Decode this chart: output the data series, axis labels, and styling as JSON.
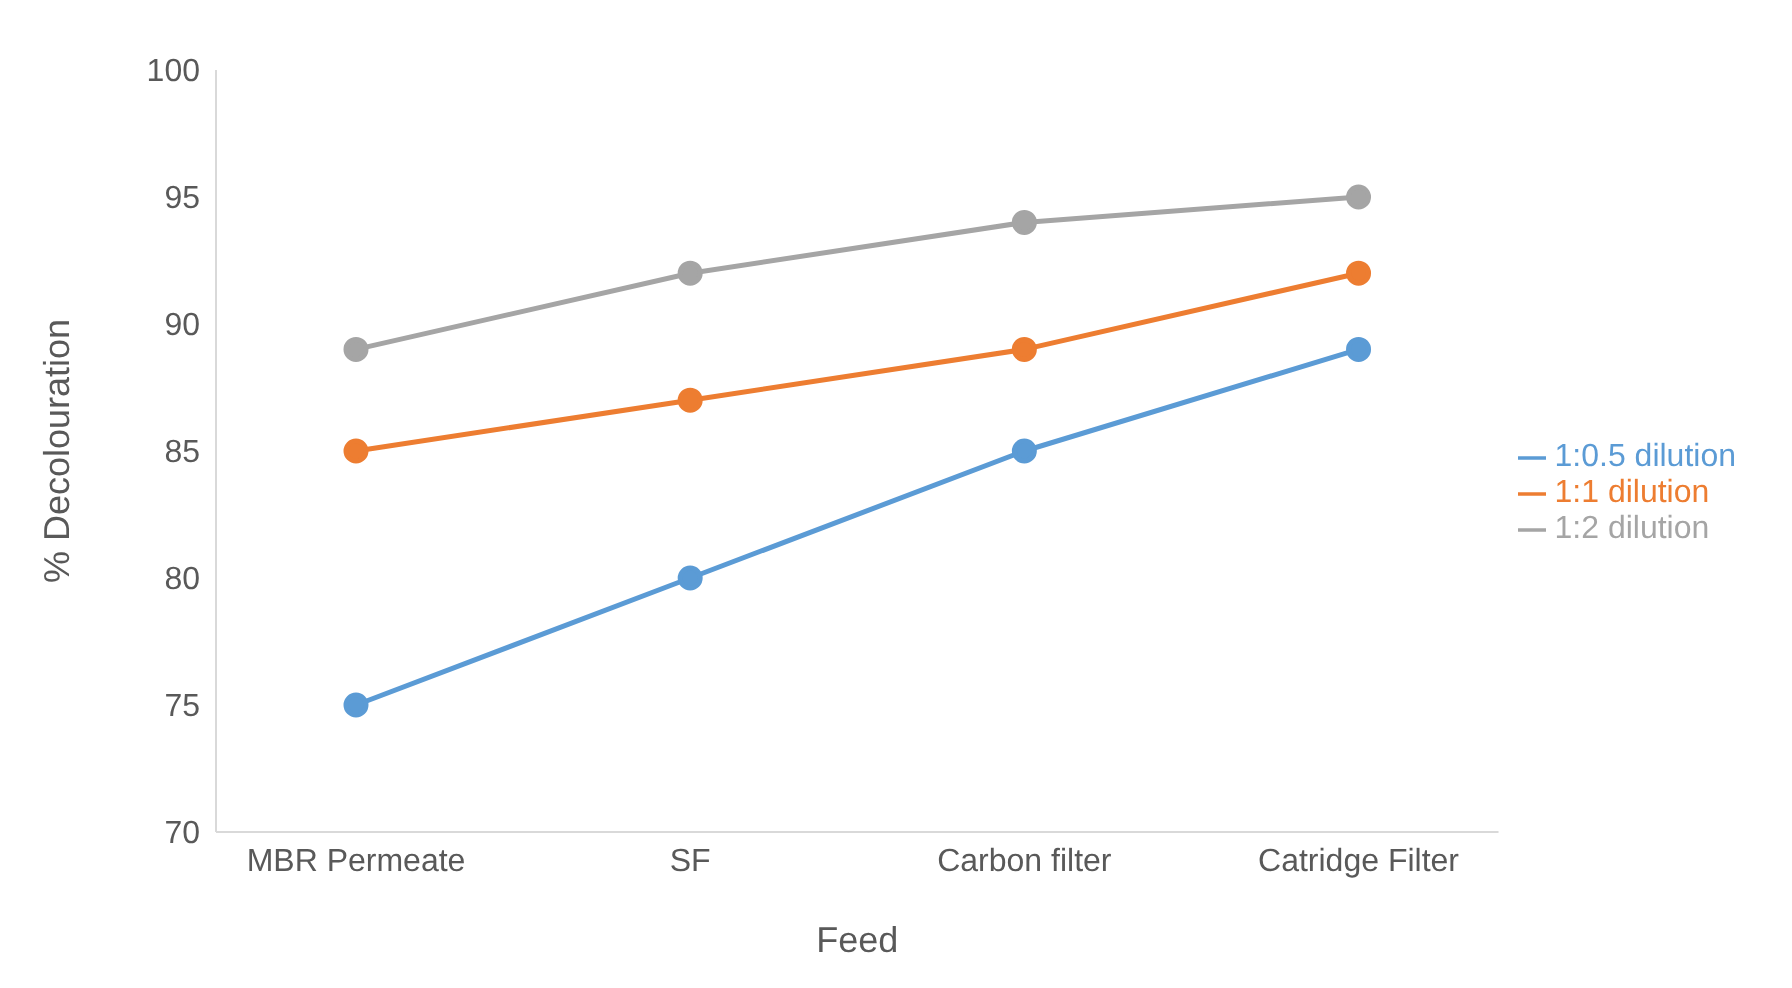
{
  "chart_data": {
    "type": "line",
    "xlabel": "Feed",
    "ylabel": "% Decolouration",
    "categories": [
      "MBR Permeate",
      "SF",
      "Carbon filter",
      "Catridge Filter"
    ],
    "series": [
      {
        "name": "1:0.5 dilution",
        "color": "#5b9bd5",
        "values": [
          75,
          80,
          85,
          89
        ]
      },
      {
        "name": "1:1 dilution",
        "color": "#ed7d31",
        "values": [
          85,
          87,
          89,
          92
        ]
      },
      {
        "name": "1:2 dilution",
        "color": "#a5a5a5",
        "values": [
          89,
          92,
          94,
          95
        ]
      }
    ],
    "ylim": [
      70,
      100
    ],
    "yticks": [
      70,
      75,
      80,
      85,
      90,
      95,
      100
    ],
    "grid": false,
    "legend": "right",
    "marker": "circle",
    "line_style": "solid"
  }
}
